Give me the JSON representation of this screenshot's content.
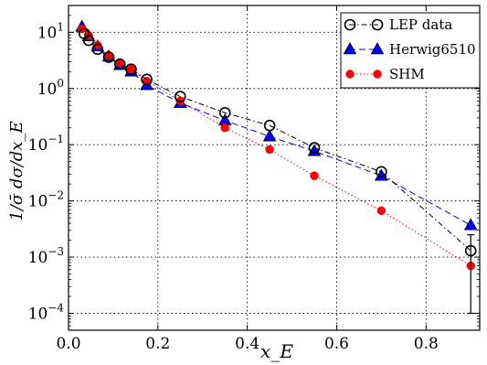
{
  "chart_data": {
    "type": "line",
    "title": "",
    "xlabel": "x_E",
    "ylabel": "1/σ̄ dσ/dx_E",
    "xlim": [
      0.0,
      0.92
    ],
    "ylim": [
      5e-05,
      30
    ],
    "yscale": "log",
    "grid": true,
    "legend_position": "top-right",
    "x_ticks": [
      {
        "value": 0.0,
        "label": "0.0"
      },
      {
        "value": 0.2,
        "label": "0.2"
      },
      {
        "value": 0.4,
        "label": "0.4"
      },
      {
        "value": 0.6,
        "label": "0.6"
      },
      {
        "value": 0.8,
        "label": "0.8"
      }
    ],
    "y_ticks": [
      {
        "value": 10,
        "base": "10",
        "exp": "1"
      },
      {
        "value": 1,
        "base": "10",
        "exp": "0"
      },
      {
        "value": 0.1,
        "base": "10",
        "exp": "−1"
      },
      {
        "value": 0.01,
        "base": "10",
        "exp": "−2"
      },
      {
        "value": 0.001,
        "base": "10",
        "exp": "−3"
      },
      {
        "value": 0.0001,
        "base": "10",
        "exp": "−4"
      }
    ],
    "series": [
      {
        "name": "LEP data",
        "color": "#000000",
        "marker": "open-circle",
        "line": "dashdot",
        "x": [
          0.035,
          0.045,
          0.065,
          0.09,
          0.115,
          0.14,
          0.175,
          0.25,
          0.35,
          0.45,
          0.55,
          0.7,
          0.9
        ],
        "y": [
          9.5,
          7.2,
          5.0,
          3.6,
          2.7,
          2.2,
          1.45,
          0.72,
          0.37,
          0.22,
          0.088,
          0.033,
          0.0013
        ],
        "error_low": [
          null,
          null,
          null,
          null,
          null,
          null,
          null,
          null,
          null,
          null,
          null,
          null,
          0.0001
        ],
        "error_high": [
          null,
          null,
          null,
          null,
          null,
          null,
          null,
          null,
          null,
          null,
          null,
          null,
          0.0025
        ]
      },
      {
        "name": "Herwig6510",
        "color": "#0000ff",
        "marker": "triangle",
        "line": "dashed",
        "x": [
          0.03,
          0.045,
          0.065,
          0.09,
          0.115,
          0.14,
          0.175,
          0.25,
          0.35,
          0.45,
          0.55,
          0.7,
          0.9
        ],
        "y": [
          12.5,
          8.5,
          5.6,
          3.7,
          2.6,
          2.0,
          1.15,
          0.55,
          0.27,
          0.14,
          0.077,
          0.028,
          0.0037
        ]
      },
      {
        "name": "SHM",
        "color": "#ff0000",
        "marker": "filled-circle",
        "line": "dotted",
        "x": [
          0.03,
          0.045,
          0.065,
          0.09,
          0.115,
          0.14,
          0.175,
          0.25,
          0.35,
          0.45,
          0.55,
          0.7,
          0.9
        ],
        "y": [
          11.5,
          8.8,
          5.9,
          3.9,
          2.9,
          2.2,
          1.35,
          0.6,
          0.2,
          0.082,
          0.028,
          0.0067,
          0.0007
        ]
      }
    ]
  }
}
